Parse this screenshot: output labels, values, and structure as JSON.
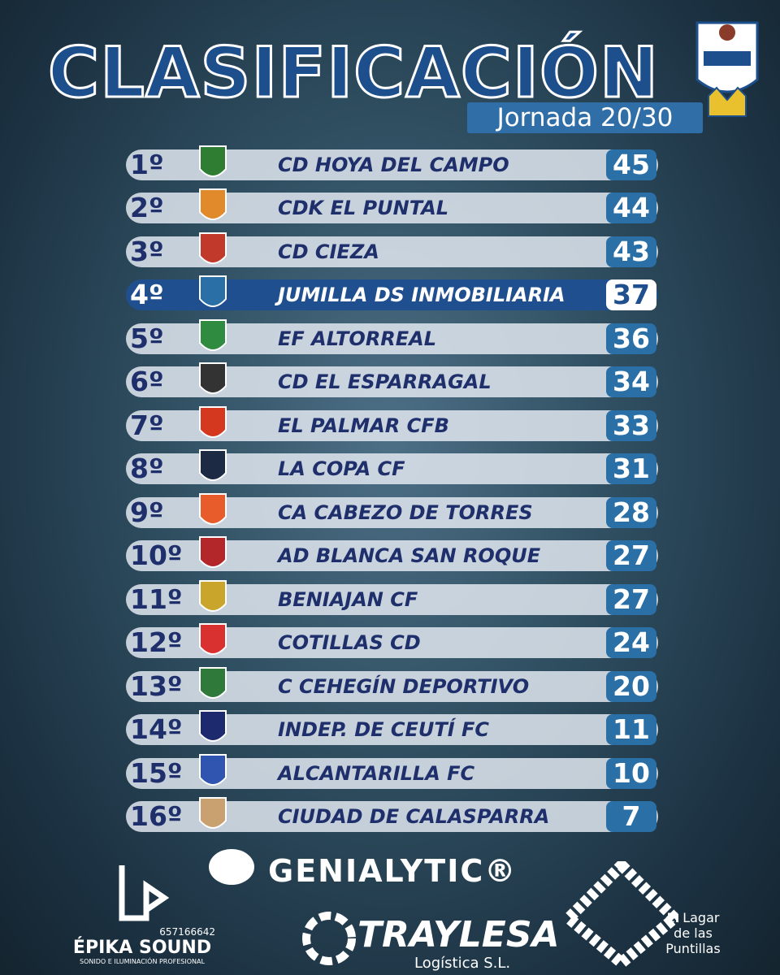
{
  "header": {
    "title": "CLASIFICACIÓN",
    "subtitle": "Jornada 20/30"
  },
  "standings": [
    {
      "position": "1º",
      "team": "CD HOYA DEL CAMPO",
      "points": 45
    },
    {
      "position": "2º",
      "team": "CDK EL PUNTAL",
      "points": 44
    },
    {
      "position": "3º",
      "team": "CD CIEZA",
      "points": 43
    },
    {
      "position": "4º",
      "team": "JUMILLA DS INMOBILIARIA",
      "points": 37
    },
    {
      "position": "5º",
      "team": "EF ALTORREAL",
      "points": 36
    },
    {
      "position": "6º",
      "team": "CD EL ESPARRAGAL",
      "points": 34
    },
    {
      "position": "7º",
      "team": "EL PALMAR CFB",
      "points": 33
    },
    {
      "position": "8º",
      "team": "LA COPA CF",
      "points": 31
    },
    {
      "position": "9º",
      "team": "CA CABEZO DE TORRES",
      "points": 28
    },
    {
      "position": "10º",
      "team": "AD BLANCA SAN ROQUE",
      "points": 27
    },
    {
      "position": "11º",
      "team": "BENIAJAN CF",
      "points": 27
    },
    {
      "position": "12º",
      "team": "COTILLAS CD",
      "points": 24
    },
    {
      "position": "13º",
      "team": "C CEHEGÍN DEPORTIVO",
      "points": 20
    },
    {
      "position": "14º",
      "team": "INDEP. DE CEUTÍ FC",
      "points": 11
    },
    {
      "position": "15º",
      "team": "ALCANTARILLA FC",
      "points": 10
    },
    {
      "position": "16º",
      "team": "CIUDAD DE CALASPARRA",
      "points": 7
    }
  ],
  "sponsors": {
    "genialytic": "GENIALYTIC®",
    "epika_name": "ÉPIKA SOUND",
    "epika_phone": "657166642",
    "epika_tagline": "SONIDO E ILUMINACIÓN PROFESIONAL",
    "traylesa_name": "TRAYLESA",
    "traylesa_tagline": "Logística S.L.",
    "lagar": "El Lagar de las Puntillas"
  }
}
